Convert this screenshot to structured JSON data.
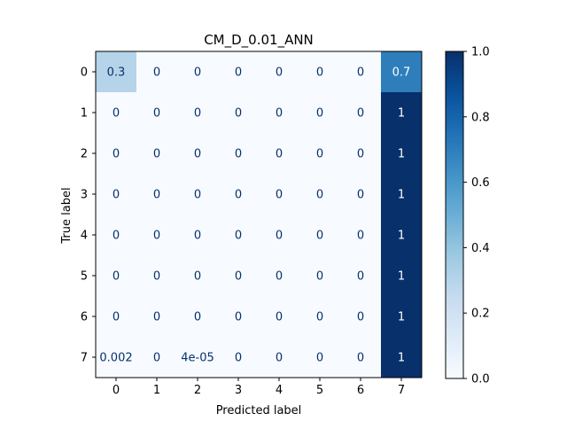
{
  "chart_data": {
    "type": "heatmap",
    "title": "CM_D_0.01_ANN",
    "xlabel": "Predicted label",
    "ylabel": "True label",
    "x_categories": [
      "0",
      "1",
      "2",
      "3",
      "4",
      "5",
      "6",
      "7"
    ],
    "y_categories": [
      "0",
      "1",
      "2",
      "3",
      "4",
      "5",
      "6",
      "7"
    ],
    "values": [
      [
        0.3,
        0,
        0,
        0,
        0,
        0,
        0,
        0.7
      ],
      [
        0,
        0,
        0,
        0,
        0,
        0,
        0,
        1
      ],
      [
        0,
        0,
        0,
        0,
        0,
        0,
        0,
        1
      ],
      [
        0,
        0,
        0,
        0,
        0,
        0,
        0,
        1
      ],
      [
        0,
        0,
        0,
        0,
        0,
        0,
        0,
        1
      ],
      [
        0,
        0,
        0,
        0,
        0,
        0,
        0,
        1
      ],
      [
        0,
        0,
        0,
        0,
        0,
        0,
        0,
        1
      ],
      [
        0.002,
        0,
        4e-05,
        0,
        0,
        0,
        0,
        1
      ]
    ],
    "cell_labels": [
      [
        "0.3",
        "0",
        "0",
        "0",
        "0",
        "0",
        "0",
        "0.7"
      ],
      [
        "0",
        "0",
        "0",
        "0",
        "0",
        "0",
        "0",
        "1"
      ],
      [
        "0",
        "0",
        "0",
        "0",
        "0",
        "0",
        "0",
        "1"
      ],
      [
        "0",
        "0",
        "0",
        "0",
        "0",
        "0",
        "0",
        "1"
      ],
      [
        "0",
        "0",
        "0",
        "0",
        "0",
        "0",
        "0",
        "1"
      ],
      [
        "0",
        "0",
        "0",
        "0",
        "0",
        "0",
        "0",
        "1"
      ],
      [
        "0",
        "0",
        "0",
        "0",
        "0",
        "0",
        "0",
        "1"
      ],
      [
        "0.002",
        "0",
        "4e-05",
        "0",
        "0",
        "0",
        "0",
        "1"
      ]
    ],
    "colormap": "Blues",
    "colorbar": {
      "range": [
        0.0,
        1.0
      ],
      "ticks": [
        0.0,
        0.2,
        0.4,
        0.6,
        0.8,
        1.0
      ],
      "tick_labels": [
        "0.0",
        "0.2",
        "0.4",
        "0.6",
        "0.8",
        "1.0"
      ]
    },
    "colors": {
      "low": "#f7fbff",
      "high": "#08306b",
      "text_dark": "#08306b",
      "text_light": "#ffffff"
    }
  }
}
